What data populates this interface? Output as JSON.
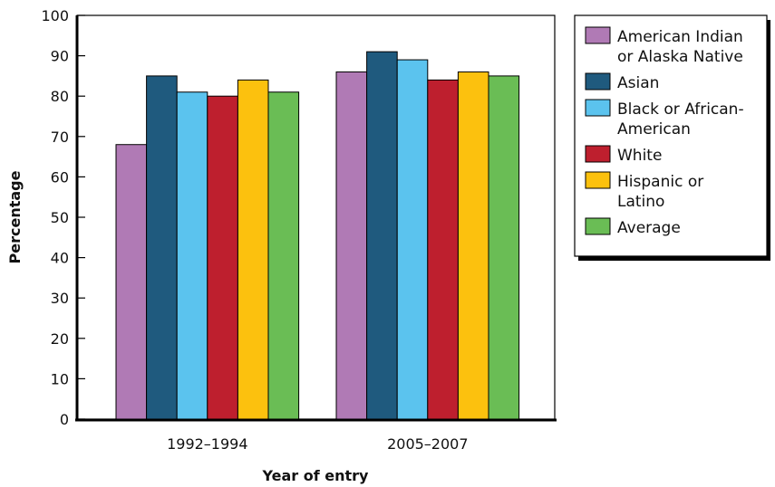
{
  "chart_data": {
    "type": "bar",
    "title": "",
    "xlabel": "Year of entry",
    "ylabel": "Percentage",
    "ylim": [
      0,
      100
    ],
    "yticks": [
      0,
      10,
      20,
      30,
      40,
      50,
      60,
      70,
      80,
      90,
      100
    ],
    "categories": [
      "1992–1994",
      "2005–2007"
    ],
    "grid": false,
    "legend_position": "right",
    "series": [
      {
        "name": "American Indian or Alaska Native",
        "legend_lines": [
          "American Indian",
          "or Alaska Native"
        ],
        "color": "#b07ab5",
        "values": [
          68,
          86
        ]
      },
      {
        "name": "Asian",
        "legend_lines": [
          "Asian"
        ],
        "color": "#1f5a7e",
        "values": [
          85,
          91
        ]
      },
      {
        "name": "Black or African-American",
        "legend_lines": [
          "Black or African-",
          "American"
        ],
        "color": "#5bc3ee",
        "values": [
          81,
          89
        ]
      },
      {
        "name": "White",
        "legend_lines": [
          "White"
        ],
        "color": "#be1f2e",
        "values": [
          80,
          84
        ]
      },
      {
        "name": "Hispanic or Latino",
        "legend_lines": [
          "Hispanic or",
          "Latino"
        ],
        "color": "#fcc10e",
        "values": [
          84,
          86
        ]
      },
      {
        "name": "Average",
        "legend_lines": [
          "Average"
        ],
        "color": "#6abd55",
        "values": [
          81,
          85
        ]
      }
    ]
  }
}
